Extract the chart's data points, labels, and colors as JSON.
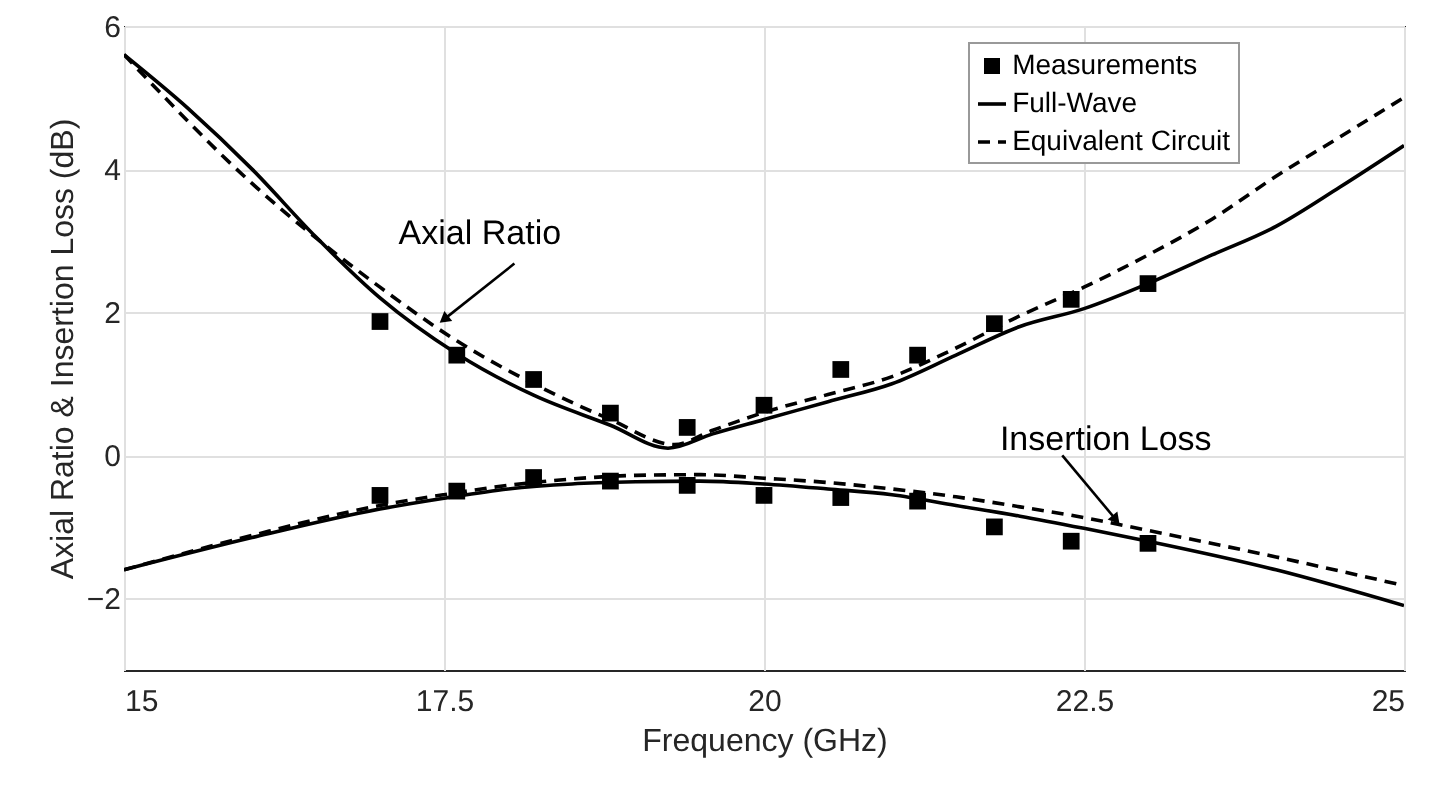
{
  "chart_data": {
    "type": "line",
    "xlabel": "Frequency (GHz)",
    "ylabel": "Axial Ratio & Insertion Loss (dB)",
    "xlim": [
      15,
      25
    ],
    "xticks": [
      15,
      17.5,
      20,
      22.5,
      25
    ],
    "ylim": [
      -3,
      6
    ],
    "yticks": [
      -2,
      0,
      2,
      4,
      6
    ],
    "grid": true,
    "legend": "top right",
    "annotations": [
      {
        "text": "Axial Ratio",
        "x": 17.5,
        "y": 1.9
      },
      {
        "text": "Insertion Loss",
        "x": 22.75,
        "y": -0.9
      }
    ],
    "series": [
      {
        "name": "Measurements",
        "type": "scatter",
        "marker": "square",
        "color": "#000000",
        "x": [
          17,
          17.6,
          18.2,
          18.8,
          19.4,
          20,
          20.6,
          21.2,
          21.8,
          22.4,
          23
        ],
        "values": [
          1.87,
          1.4,
          1.06,
          0.59,
          0.39,
          0.7,
          1.2,
          1.4,
          1.84,
          2.18,
          2.4
        ]
      },
      {
        "type": "scatter",
        "marker": "square",
        "color": "#000000",
        "x": [
          17,
          17.6,
          18.2,
          18.8,
          19.4,
          20,
          20.6,
          21.2,
          21.8,
          22.4,
          23
        ],
        "values": [
          -0.56,
          -0.5,
          -0.31,
          -0.36,
          -0.42,
          -0.56,
          -0.59,
          -0.64,
          -1.0,
          -1.2,
          -1.23
        ]
      },
      {
        "name": "Full-Wave",
        "type": "line",
        "line_style": "solid",
        "color": "#000000",
        "x": [
          15,
          15.5,
          16,
          16.5,
          17,
          17.6,
          18.2,
          18.8,
          19.25,
          19.6,
          20,
          20.5,
          21,
          21.5,
          22,
          22.5,
          23,
          23.5,
          24,
          24.5,
          25
        ],
        "values": [
          5.6,
          4.85,
          4.0,
          3.05,
          2.2,
          1.42,
          0.84,
          0.42,
          0.1,
          0.3,
          0.5,
          0.75,
          1.0,
          1.4,
          1.8,
          2.05,
          2.4,
          2.8,
          3.2,
          3.75,
          4.33
        ]
      },
      {
        "type": "line",
        "line_style": "solid",
        "color": "#000000",
        "x": [
          15,
          16,
          17,
          17.5,
          18,
          18.5,
          19,
          19.5,
          20,
          20.5,
          21,
          21.5,
          22,
          22.5,
          23,
          24,
          25
        ],
        "values": [
          -1.6,
          -1.15,
          -0.75,
          -0.6,
          -0.47,
          -0.4,
          -0.37,
          -0.36,
          -0.4,
          -0.47,
          -0.55,
          -0.7,
          -0.85,
          -1.02,
          -1.2,
          -1.6,
          -2.1
        ]
      },
      {
        "name": "Equivalent Circuit",
        "type": "line",
        "line_style": "dashed",
        "color": "#000000",
        "x": [
          15,
          16,
          17,
          17.6,
          18.2,
          18.8,
          19.3,
          19.6,
          20,
          20.5,
          21,
          21.5,
          22,
          22.5,
          23,
          23.5,
          24,
          24.5,
          25
        ],
        "values": [
          5.6,
          3.8,
          2.35,
          1.6,
          1.0,
          0.5,
          0.15,
          0.35,
          0.6,
          0.85,
          1.1,
          1.5,
          1.95,
          2.35,
          2.8,
          3.3,
          3.9,
          4.45,
          5.0
        ]
      },
      {
        "type": "line",
        "line_style": "dashed",
        "color": "#000000",
        "x": [
          15,
          16,
          17,
          17.5,
          18,
          18.5,
          19,
          19.5,
          20,
          20.5,
          21,
          21.5,
          22,
          22.5,
          23,
          24,
          25
        ],
        "values": [
          -1.6,
          -1.12,
          -0.7,
          -0.55,
          -0.42,
          -0.33,
          -0.28,
          -0.27,
          -0.32,
          -0.38,
          -0.47,
          -0.58,
          -0.72,
          -0.87,
          -1.05,
          -1.42,
          -1.82
        ]
      }
    ]
  }
}
